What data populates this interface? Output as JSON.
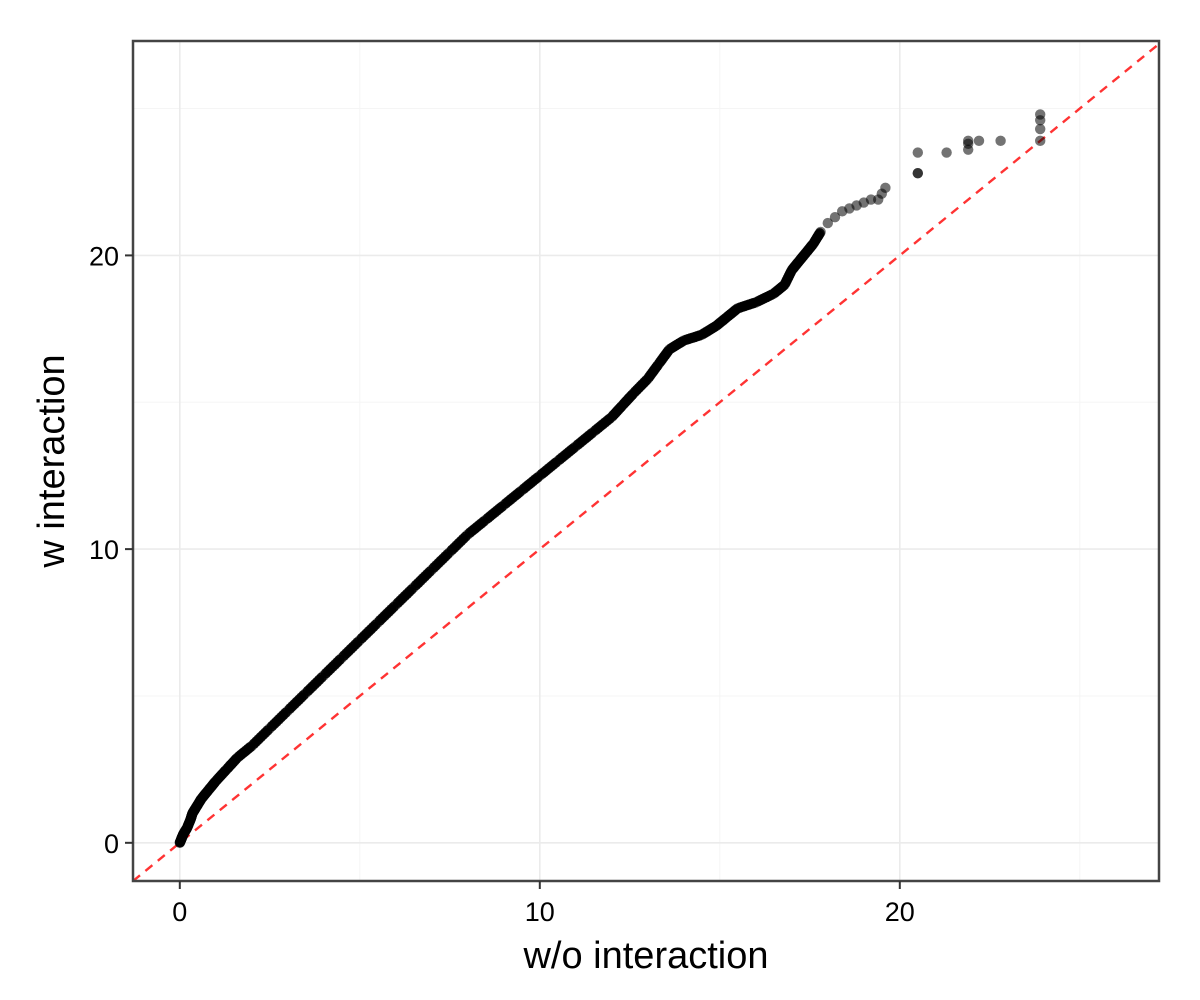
{
  "chart_data": {
    "type": "scatter",
    "title": "",
    "xlabel": "w/o interaction",
    "ylabel": "w interaction",
    "xlim": [
      -1.3,
      27.2
    ],
    "ylim": [
      -1.3,
      27.3
    ],
    "x_ticks": [
      0,
      10,
      20
    ],
    "y_ticks": [
      0,
      10,
      20
    ],
    "x_tick_labels": [
      "0",
      "10",
      "20"
    ],
    "y_tick_labels": [
      "0",
      "10",
      "20"
    ],
    "grid": true,
    "legend": "none",
    "reference_line": {
      "type": "identity",
      "style": "dashed",
      "color": "#ff3333"
    },
    "point_color": "#000000",
    "point_opacity": 0.55,
    "series": [
      {
        "x": [
          0.0,
          0.05,
          0.1,
          0.2,
          0.3,
          0.35,
          0.45,
          0.6,
          0.8,
          1.0,
          1.3,
          1.6,
          2.0,
          2.5,
          3.0,
          3.5,
          4.0,
          4.5,
          5.0,
          5.5,
          6.0,
          6.5,
          7.0,
          7.5,
          8.0,
          8.5,
          9.0,
          9.5,
          10.0,
          10.5,
          11.0,
          11.5,
          12.0,
          12.3,
          12.6,
          13.0,
          13.3,
          13.6,
          14.0,
          14.5,
          14.9,
          15.2,
          15.5,
          16.0,
          16.5,
          16.8,
          17.0,
          17.2,
          17.4,
          17.6,
          17.8,
          18.0,
          18.2,
          18.4,
          18.6,
          18.8,
          19.0,
          19.2,
          19.4,
          19.5,
          19.6,
          20.5,
          20.5,
          20.5,
          21.3,
          21.9,
          21.9,
          21.9,
          22.2,
          22.8,
          23.9,
          23.9,
          23.9,
          23.9
        ],
        "y": [
          0.0,
          0.15,
          0.3,
          0.5,
          0.8,
          1.0,
          1.2,
          1.5,
          1.8,
          2.1,
          2.5,
          2.9,
          3.3,
          3.9,
          4.5,
          5.1,
          5.7,
          6.3,
          6.9,
          7.5,
          8.1,
          8.7,
          9.3,
          9.9,
          10.5,
          11.0,
          11.5,
          12.0,
          12.5,
          13.0,
          13.5,
          14.0,
          14.5,
          14.9,
          15.3,
          15.8,
          16.3,
          16.8,
          17.1,
          17.3,
          17.6,
          17.9,
          18.2,
          18.4,
          18.7,
          19.0,
          19.5,
          19.8,
          20.1,
          20.4,
          20.8,
          21.1,
          21.3,
          21.5,
          21.6,
          21.7,
          21.8,
          21.9,
          21.9,
          22.1,
          22.3,
          22.8,
          22.8,
          23.5,
          23.5,
          23.6,
          23.8,
          23.9,
          23.9,
          23.9,
          23.9,
          24.3,
          24.6,
          24.8
        ]
      }
    ]
  }
}
